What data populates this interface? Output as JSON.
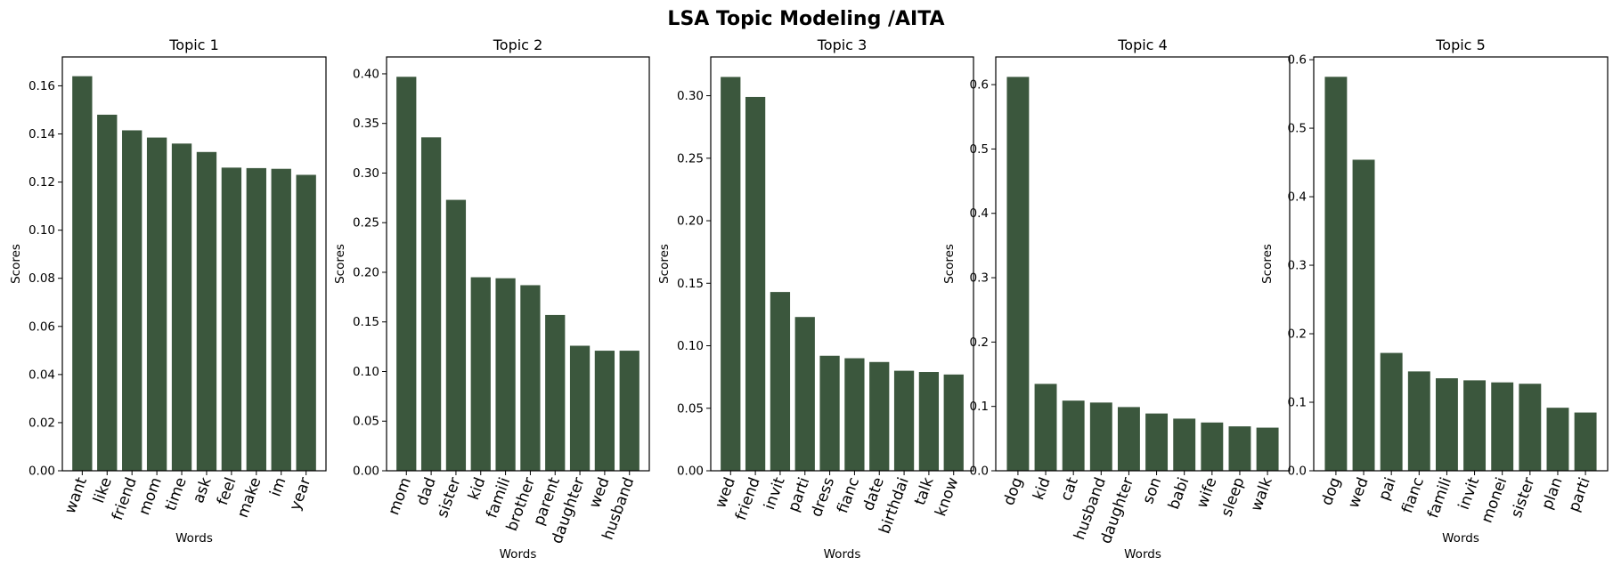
{
  "suptitle": "LSA Topic Modeling /AITA",
  "bar_color": "#3b573d",
  "chart_data": [
    {
      "type": "bar",
      "title": "Topic 1",
      "xlabel": "Words",
      "ylabel": "Scores",
      "categories": [
        "want",
        "like",
        "friend",
        "mom",
        "time",
        "ask",
        "feel",
        "make",
        "im",
        "year"
      ],
      "values": [
        0.164,
        0.148,
        0.1415,
        0.1385,
        0.136,
        0.1325,
        0.126,
        0.1258,
        0.1255,
        0.123
      ],
      "ylim": [
        0,
        0.172
      ],
      "yticks": [
        0.0,
        0.02,
        0.04,
        0.06,
        0.08,
        0.1,
        0.12,
        0.14,
        0.16
      ],
      "ytick_labels": [
        "0.00",
        "0.02",
        "0.04",
        "0.06",
        "0.08",
        "0.10",
        "0.12",
        "0.14",
        "0.16"
      ]
    },
    {
      "type": "bar",
      "title": "Topic 2",
      "xlabel": "Words",
      "ylabel": "Scores",
      "categories": [
        "mom",
        "dad",
        "sister",
        "kid",
        "famili",
        "brother",
        "parent",
        "daughter",
        "wed",
        "husband"
      ],
      "values": [
        0.397,
        0.336,
        0.273,
        0.195,
        0.194,
        0.187,
        0.157,
        0.126,
        0.121,
        0.121
      ],
      "ylim": [
        0,
        0.417
      ],
      "yticks": [
        0.0,
        0.05,
        0.1,
        0.15,
        0.2,
        0.25,
        0.3,
        0.35,
        0.4
      ],
      "ytick_labels": [
        "0.00",
        "0.05",
        "0.10",
        "0.15",
        "0.20",
        "0.25",
        "0.30",
        "0.35",
        "0.40"
      ]
    },
    {
      "type": "bar",
      "title": "Topic 3",
      "xlabel": "Words",
      "ylabel": "Scores",
      "categories": [
        "wed",
        "friend",
        "invit",
        "parti",
        "dress",
        "fianc",
        "date",
        "birthdai",
        "talk",
        "know"
      ],
      "values": [
        0.315,
        0.299,
        0.143,
        0.123,
        0.092,
        0.09,
        0.087,
        0.08,
        0.079,
        0.077
      ],
      "ylim": [
        0,
        0.331
      ],
      "yticks": [
        0.0,
        0.05,
        0.1,
        0.15,
        0.2,
        0.25,
        0.3
      ],
      "ytick_labels": [
        "0.00",
        "0.05",
        "0.10",
        "0.15",
        "0.20",
        "0.25",
        "0.30"
      ]
    },
    {
      "type": "bar",
      "title": "Topic 4",
      "xlabel": "Words",
      "ylabel": "Scores",
      "categories": [
        "dog",
        "kid",
        "cat",
        "husband",
        "daughter",
        "son",
        "babi",
        "wife",
        "sleep",
        "walk"
      ],
      "values": [
        0.612,
        0.135,
        0.109,
        0.106,
        0.099,
        0.089,
        0.081,
        0.075,
        0.069,
        0.067
      ],
      "ylim": [
        0,
        0.643
      ],
      "yticks": [
        0.0,
        0.1,
        0.2,
        0.3,
        0.4,
        0.5,
        0.6
      ],
      "ytick_labels": [
        "0.0",
        "0.1",
        "0.2",
        "0.3",
        "0.4",
        "0.5",
        "0.6"
      ]
    },
    {
      "type": "bar",
      "title": "Topic 5",
      "xlabel": "Words",
      "ylabel": "Scores",
      "categories": [
        "dog",
        "wed",
        "pai",
        "fianc",
        "famili",
        "invit",
        "monei",
        "sister",
        "plan",
        "parti"
      ],
      "values": [
        0.575,
        0.454,
        0.172,
        0.145,
        0.135,
        0.132,
        0.129,
        0.127,
        0.092,
        0.085
      ],
      "ylim": [
        0,
        0.604
      ],
      "yticks": [
        0.0,
        0.1,
        0.2,
        0.3,
        0.4,
        0.5,
        0.6
      ],
      "ytick_labels": [
        "0.0",
        "0.1",
        "0.2",
        "0.3",
        "0.4",
        "0.5",
        "0.6"
      ]
    }
  ]
}
